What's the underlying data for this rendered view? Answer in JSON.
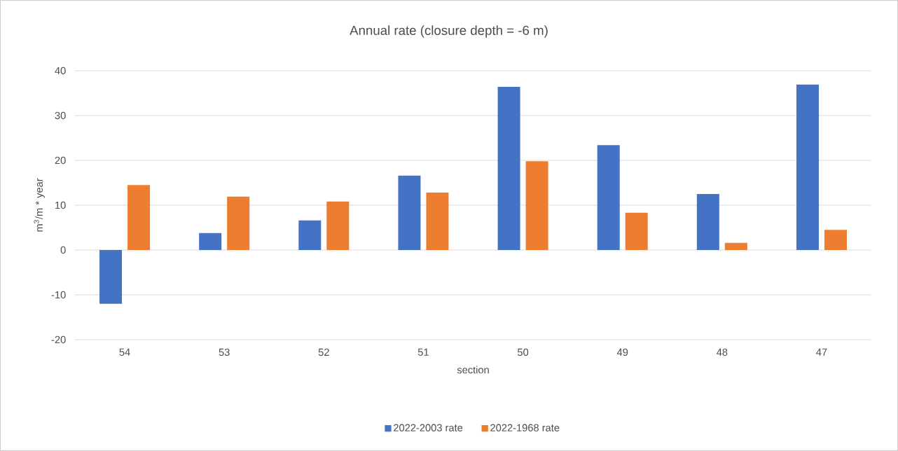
{
  "chart_data": {
    "type": "bar",
    "title": "Annual rate (closure depth = -6 m)",
    "xlabel": "section",
    "ylabel": "m$^{3}$/m * year",
    "categories": [
      "54",
      "53",
      "52",
      "51",
      "50",
      "49",
      "48",
      "47"
    ],
    "series": [
      {
        "name": "2022-2003 rate",
        "color": "#4472c4",
        "values": [
          -12.0,
          3.8,
          6.6,
          16.6,
          36.4,
          23.4,
          12.5,
          36.9
        ]
      },
      {
        "name": "2022-1968 rate",
        "color": "#ed7d31",
        "values": [
          14.5,
          11.9,
          10.8,
          12.8,
          19.8,
          8.3,
          1.6,
          4.5
        ]
      }
    ],
    "ylim": [
      -20,
      40
    ],
    "yticks": [
      -20,
      -10,
      0,
      10,
      20,
      30,
      40
    ],
    "grid": "y",
    "legend": "bottom"
  }
}
